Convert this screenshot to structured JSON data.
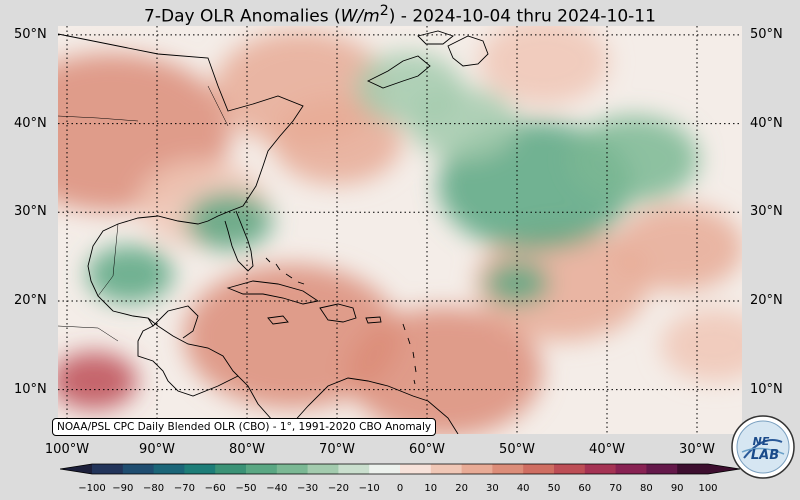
{
  "title": {
    "prefix": "7-Day OLR Anomalies (",
    "unit_italic": "W/m",
    "unit_sup": "2",
    "suffix": ") - 2024-10-04 thru 2024-10-11"
  },
  "lat_labels": [
    "50°N",
    "40°N",
    "30°N",
    "20°N",
    "10°N"
  ],
  "lon_labels": [
    "100°W",
    "90°W",
    "80°W",
    "70°W",
    "60°W",
    "50°W",
    "40°W",
    "30°W"
  ],
  "credit": "NOAA/PSL CPC Daily Blended OLR (CBO) - 1°, 1991-2020 CBO Anomaly",
  "colorbar": {
    "ticks": [
      "−100",
      "−90",
      "−80",
      "−70",
      "−60",
      "−50",
      "−40",
      "−30",
      "−20",
      "−10",
      "0",
      "10",
      "20",
      "30",
      "40",
      "50",
      "60",
      "70",
      "80",
      "90",
      "100"
    ],
    "colors": [
      "#1c1f3a",
      "#22345a",
      "#1f4d70",
      "#1b6578",
      "#1d7d78",
      "#3b9276",
      "#5aa783",
      "#7bb894",
      "#a3cbae",
      "#cadfce",
      "#edf2ee",
      "#f7e2da",
      "#f0c7b6",
      "#e8ab96",
      "#dc8d79",
      "#cf6e62",
      "#bd4e56",
      "#a53354",
      "#882253",
      "#64184a",
      "#3d0e2f"
    ]
  },
  "logo": {
    "text_top": "NE",
    "text_bottom": "LAB"
  },
  "map_data": {
    "extent": {
      "lon": [
        -101,
        -25
      ],
      "lat": [
        5,
        51
      ]
    },
    "field_unit": "W/m2",
    "features": [
      {
        "type": "positive",
        "lon": -95,
        "lat": 39,
        "r": 11,
        "value": 35
      },
      {
        "type": "positive",
        "lon": -74,
        "lat": 44,
        "r": 8,
        "value": 25
      },
      {
        "type": "positive",
        "lon": -70,
        "lat": 38,
        "r": 6,
        "value": 30
      },
      {
        "type": "positive",
        "lon": -85,
        "lat": 31,
        "r": 6,
        "value": 20
      },
      {
        "type": "positive",
        "lon": -75,
        "lat": 16,
        "r": 10,
        "value": 40
      },
      {
        "type": "positive",
        "lon": -58,
        "lat": 12,
        "r": 9,
        "value": 35
      },
      {
        "type": "positive",
        "lon": -97,
        "lat": 11,
        "r": 4,
        "value": 55
      },
      {
        "type": "positive",
        "lon": -45,
        "lat": 22,
        "r": 8,
        "value": 25
      },
      {
        "type": "positive",
        "lon": -32,
        "lat": 26,
        "r": 6,
        "value": 25
      },
      {
        "type": "positive",
        "lon": -28,
        "lat": 15,
        "r": 5,
        "value": 20
      },
      {
        "type": "positive",
        "lon": -47,
        "lat": 47,
        "r": 6,
        "value": 20
      },
      {
        "type": "negative",
        "lon": -48,
        "lat": 33,
        "r": 9,
        "value": -40
      },
      {
        "type": "negative",
        "lon": -37,
        "lat": 36,
        "r": 6,
        "value": -30
      },
      {
        "type": "negative",
        "lon": -82,
        "lat": 29,
        "r": 4,
        "value": -45
      },
      {
        "type": "negative",
        "lon": -93,
        "lat": 23,
        "r": 4,
        "value": -40
      },
      {
        "type": "negative",
        "lon": -50,
        "lat": 22,
        "r": 3,
        "value": -40
      },
      {
        "type": "negative",
        "lon": -62,
        "lat": 44,
        "r": 5,
        "value": -20
      },
      {
        "type": "negative",
        "lon": -56,
        "lat": 40,
        "r": 5,
        "value": -20
      }
    ]
  }
}
